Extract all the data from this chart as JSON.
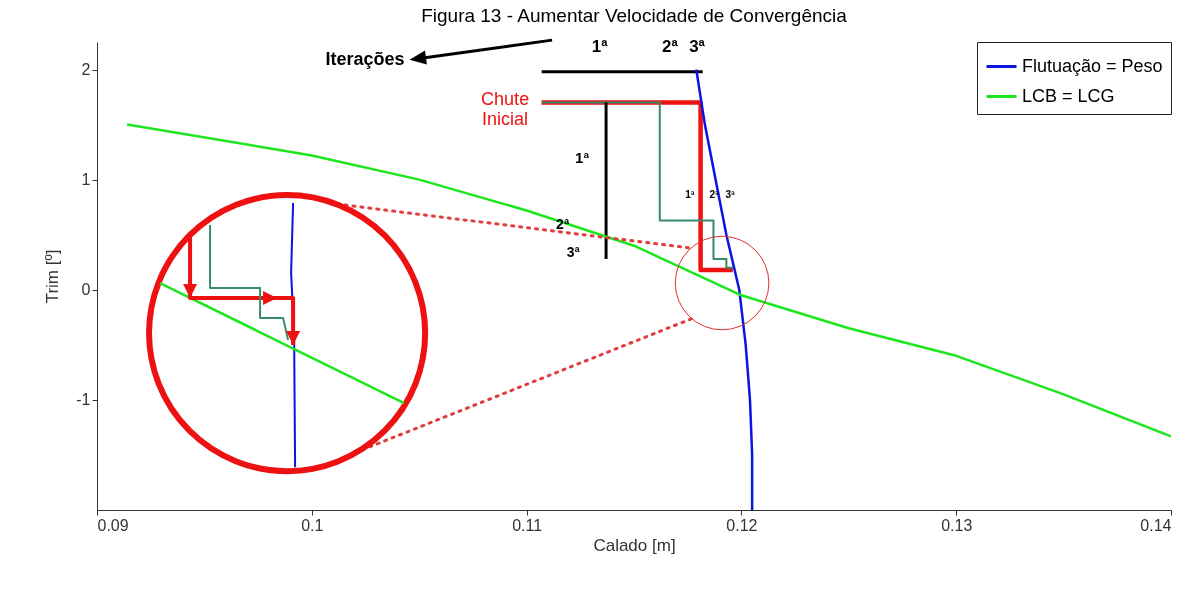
{
  "chart_data": {
    "type": "line",
    "title": "Figura 13 - Aumentar Velocidade de Convergência",
    "xlabel": "Calado [m]",
    "ylabel": "Trim [º]",
    "xlim": [
      0.09,
      0.14
    ],
    "xticks": [
      0.09,
      0.1,
      0.11,
      0.12,
      0.13,
      0.14
    ],
    "ylim": [
      -2,
      2.25
    ],
    "yticks": [
      -1,
      0,
      1,
      2
    ],
    "legend": "top right",
    "series": [
      {
        "name": "Flutuação = Peso",
        "color": "#0a14e6",
        "x": [
          0.1179,
          0.1183,
          0.1188,
          0.1193,
          0.1199,
          0.1202,
          0.1204,
          0.1205,
          0.1205
        ],
        "values": [
          2,
          1.5,
          1,
          0.5,
          0,
          -0.5,
          -1,
          -1.5,
          -2
        ]
      },
      {
        "name": "LCB = LCG",
        "color": "#1ee61e",
        "x": [
          0.0914,
          0.1,
          0.105,
          0.11,
          0.115,
          0.12,
          0.125,
          0.13,
          0.135,
          0.14
        ],
        "values": [
          1.5,
          1.22,
          1.0,
          0.72,
          0.4,
          -0.05,
          -0.35,
          -0.6,
          -0.95,
          -1.33
        ]
      },
      {
        "color": "#ee1111",
        "x": [
          0.1107,
          0.1181,
          0.1181,
          0.1196
        ],
        "values": [
          1.7,
          1.7,
          0.18,
          0.18
        ]
      },
      {
        "color": "#3a8a6a",
        "x": [
          0.1107,
          0.1162,
          0.1162,
          0.1187,
          0.1187,
          0.1193,
          0.1193,
          0.1197
        ],
        "values": [
          1.7,
          1.7,
          0.63,
          0.63,
          0.28,
          0.28,
          0.2,
          0.2
        ]
      },
      {
        "color": "#000000",
        "x": [
          0.1107,
          0.1182
        ],
        "values": [
          1.98,
          1.98
        ]
      },
      {
        "color": "#000000",
        "x": [
          0.1137,
          0.1137
        ],
        "values": [
          1.7,
          0.28
        ]
      }
    ],
    "annotations": [
      "Iterações",
      "1ª",
      "2ª",
      "3ª",
      "Chute Inicial",
      "1ª",
      "2ª",
      "3ª",
      "1ª",
      "2ª",
      "3ª"
    ]
  }
}
